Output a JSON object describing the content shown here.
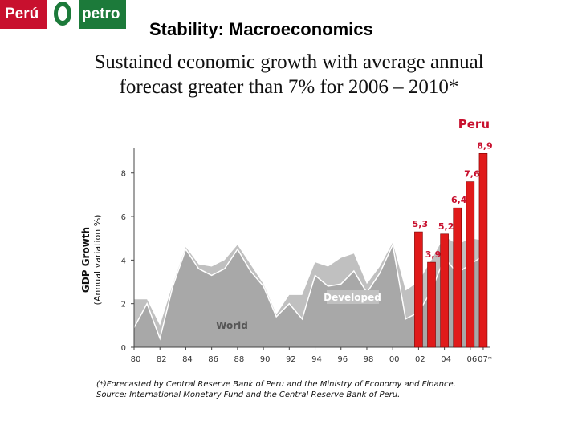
{
  "logo": {
    "left_text": "Perú",
    "right_text": "petro"
  },
  "title": "Stability:  Macroeconomics",
  "subtitle_line1": "Sustained economic growth with average annual",
  "subtitle_line2": "forecast greater than 7% for 2006 – 2010*",
  "footnote_line1": "(*)Forecasted by Central Reserve Bank of Peru and the Ministry of Economy and Finance.",
  "footnote_line2": "Source: International Monetary Fund and the Central Reserve Bank of Peru.",
  "chart_data": {
    "type": "area",
    "ylabel": "GDP Growth",
    "ylabel_sub": "(Annual variation %)",
    "ylim": [
      0,
      9.5
    ],
    "yticks": [
      0,
      2,
      4,
      6,
      8
    ],
    "xlim": [
      1980,
      2007.5
    ],
    "xticks": [
      "80",
      "82",
      "84",
      "86",
      "88",
      "90",
      "92",
      "94",
      "96",
      "98",
      "00",
      "02",
      "04",
      "06",
      "07*"
    ],
    "xtick_values": [
      1980,
      1982,
      1984,
      1986,
      1988,
      1990,
      1992,
      1994,
      1996,
      1998,
      2000,
      2002,
      2004,
      2006,
      2007
    ],
    "series": [
      {
        "name": "Developed",
        "color": "#c0c0c0",
        "x": [
          1980,
          1981,
          1982,
          1983,
          1984,
          1985,
          1986,
          1987,
          1988,
          1989,
          1990,
          1991,
          1992,
          1993,
          1994,
          1995,
          1996,
          1997,
          1998,
          1999,
          2000,
          2001,
          2002,
          2003,
          2004,
          2005,
          2006,
          2007
        ],
        "values": [
          2.2,
          2.2,
          1.0,
          2.9,
          4.6,
          3.8,
          3.7,
          4.0,
          4.7,
          3.8,
          2.9,
          1.5,
          2.4,
          2.4,
          3.9,
          3.7,
          4.1,
          4.3,
          2.9,
          3.7,
          4.8,
          2.6,
          3.0,
          4.0,
          5.1,
          4.7,
          5.0,
          4.9
        ]
      },
      {
        "name": "World",
        "color": "#a8a8a8",
        "x": [
          1980,
          1981,
          1982,
          1983,
          1984,
          1985,
          1986,
          1987,
          1988,
          1989,
          1990,
          1991,
          1992,
          1993,
          1994,
          1995,
          1996,
          1997,
          1998,
          1999,
          2000,
          2001,
          2002,
          2003,
          2004,
          2005,
          2006,
          2007
        ],
        "values": [
          0.9,
          2.0,
          0.4,
          2.8,
          4.5,
          3.6,
          3.3,
          3.6,
          4.5,
          3.5,
          2.8,
          1.4,
          2.0,
          1.3,
          3.3,
          2.8,
          2.9,
          3.5,
          2.5,
          3.4,
          4.7,
          1.3,
          1.6,
          2.6,
          4.1,
          3.4,
          3.8,
          4.2
        ]
      }
    ],
    "peru": {
      "name": "Peru",
      "color": "#e01a1a",
      "x": [
        2002,
        2003,
        2004,
        2005,
        2006,
        2007
      ],
      "values": [
        5.3,
        3.9,
        5.2,
        6.4,
        7.6,
        8.9
      ],
      "labels": [
        "5,3",
        "3,9",
        "5,2",
        "6,4",
        "7,6",
        "8,9"
      ]
    }
  }
}
